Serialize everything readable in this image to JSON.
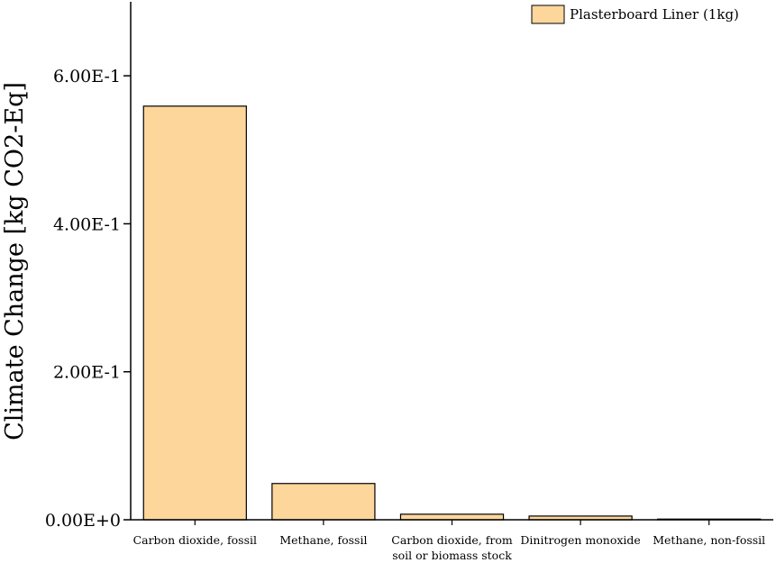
{
  "chart_data": {
    "type": "bar",
    "title": "",
    "xlabel": "",
    "ylabel": "Climate Change [kg CO2-Eq]",
    "categories": [
      [
        "Carbon dioxide, fossil"
      ],
      [
        "Methane, fossil"
      ],
      [
        "Carbon dioxide, from",
        "soil or biomass stock"
      ],
      [
        "Dinitrogen monoxide"
      ],
      [
        "Methane, non-fossil"
      ]
    ],
    "series": [
      {
        "name": "Plasterboard Liner (1kg)",
        "values": [
          0.559,
          0.049,
          0.0075,
          0.005,
          0.0009
        ],
        "color": "#fdd69c"
      }
    ],
    "ylim": [
      0,
      0.7
    ],
    "yticks": [
      {
        "value": 0,
        "label": "0.00E+0"
      },
      {
        "value": 0.2,
        "label": "2.00E-1"
      },
      {
        "value": 0.4,
        "label": "4.00E-1"
      },
      {
        "value": 0.6,
        "label": "6.00E-1"
      }
    ],
    "legend_position": "top-right",
    "grid": false
  }
}
